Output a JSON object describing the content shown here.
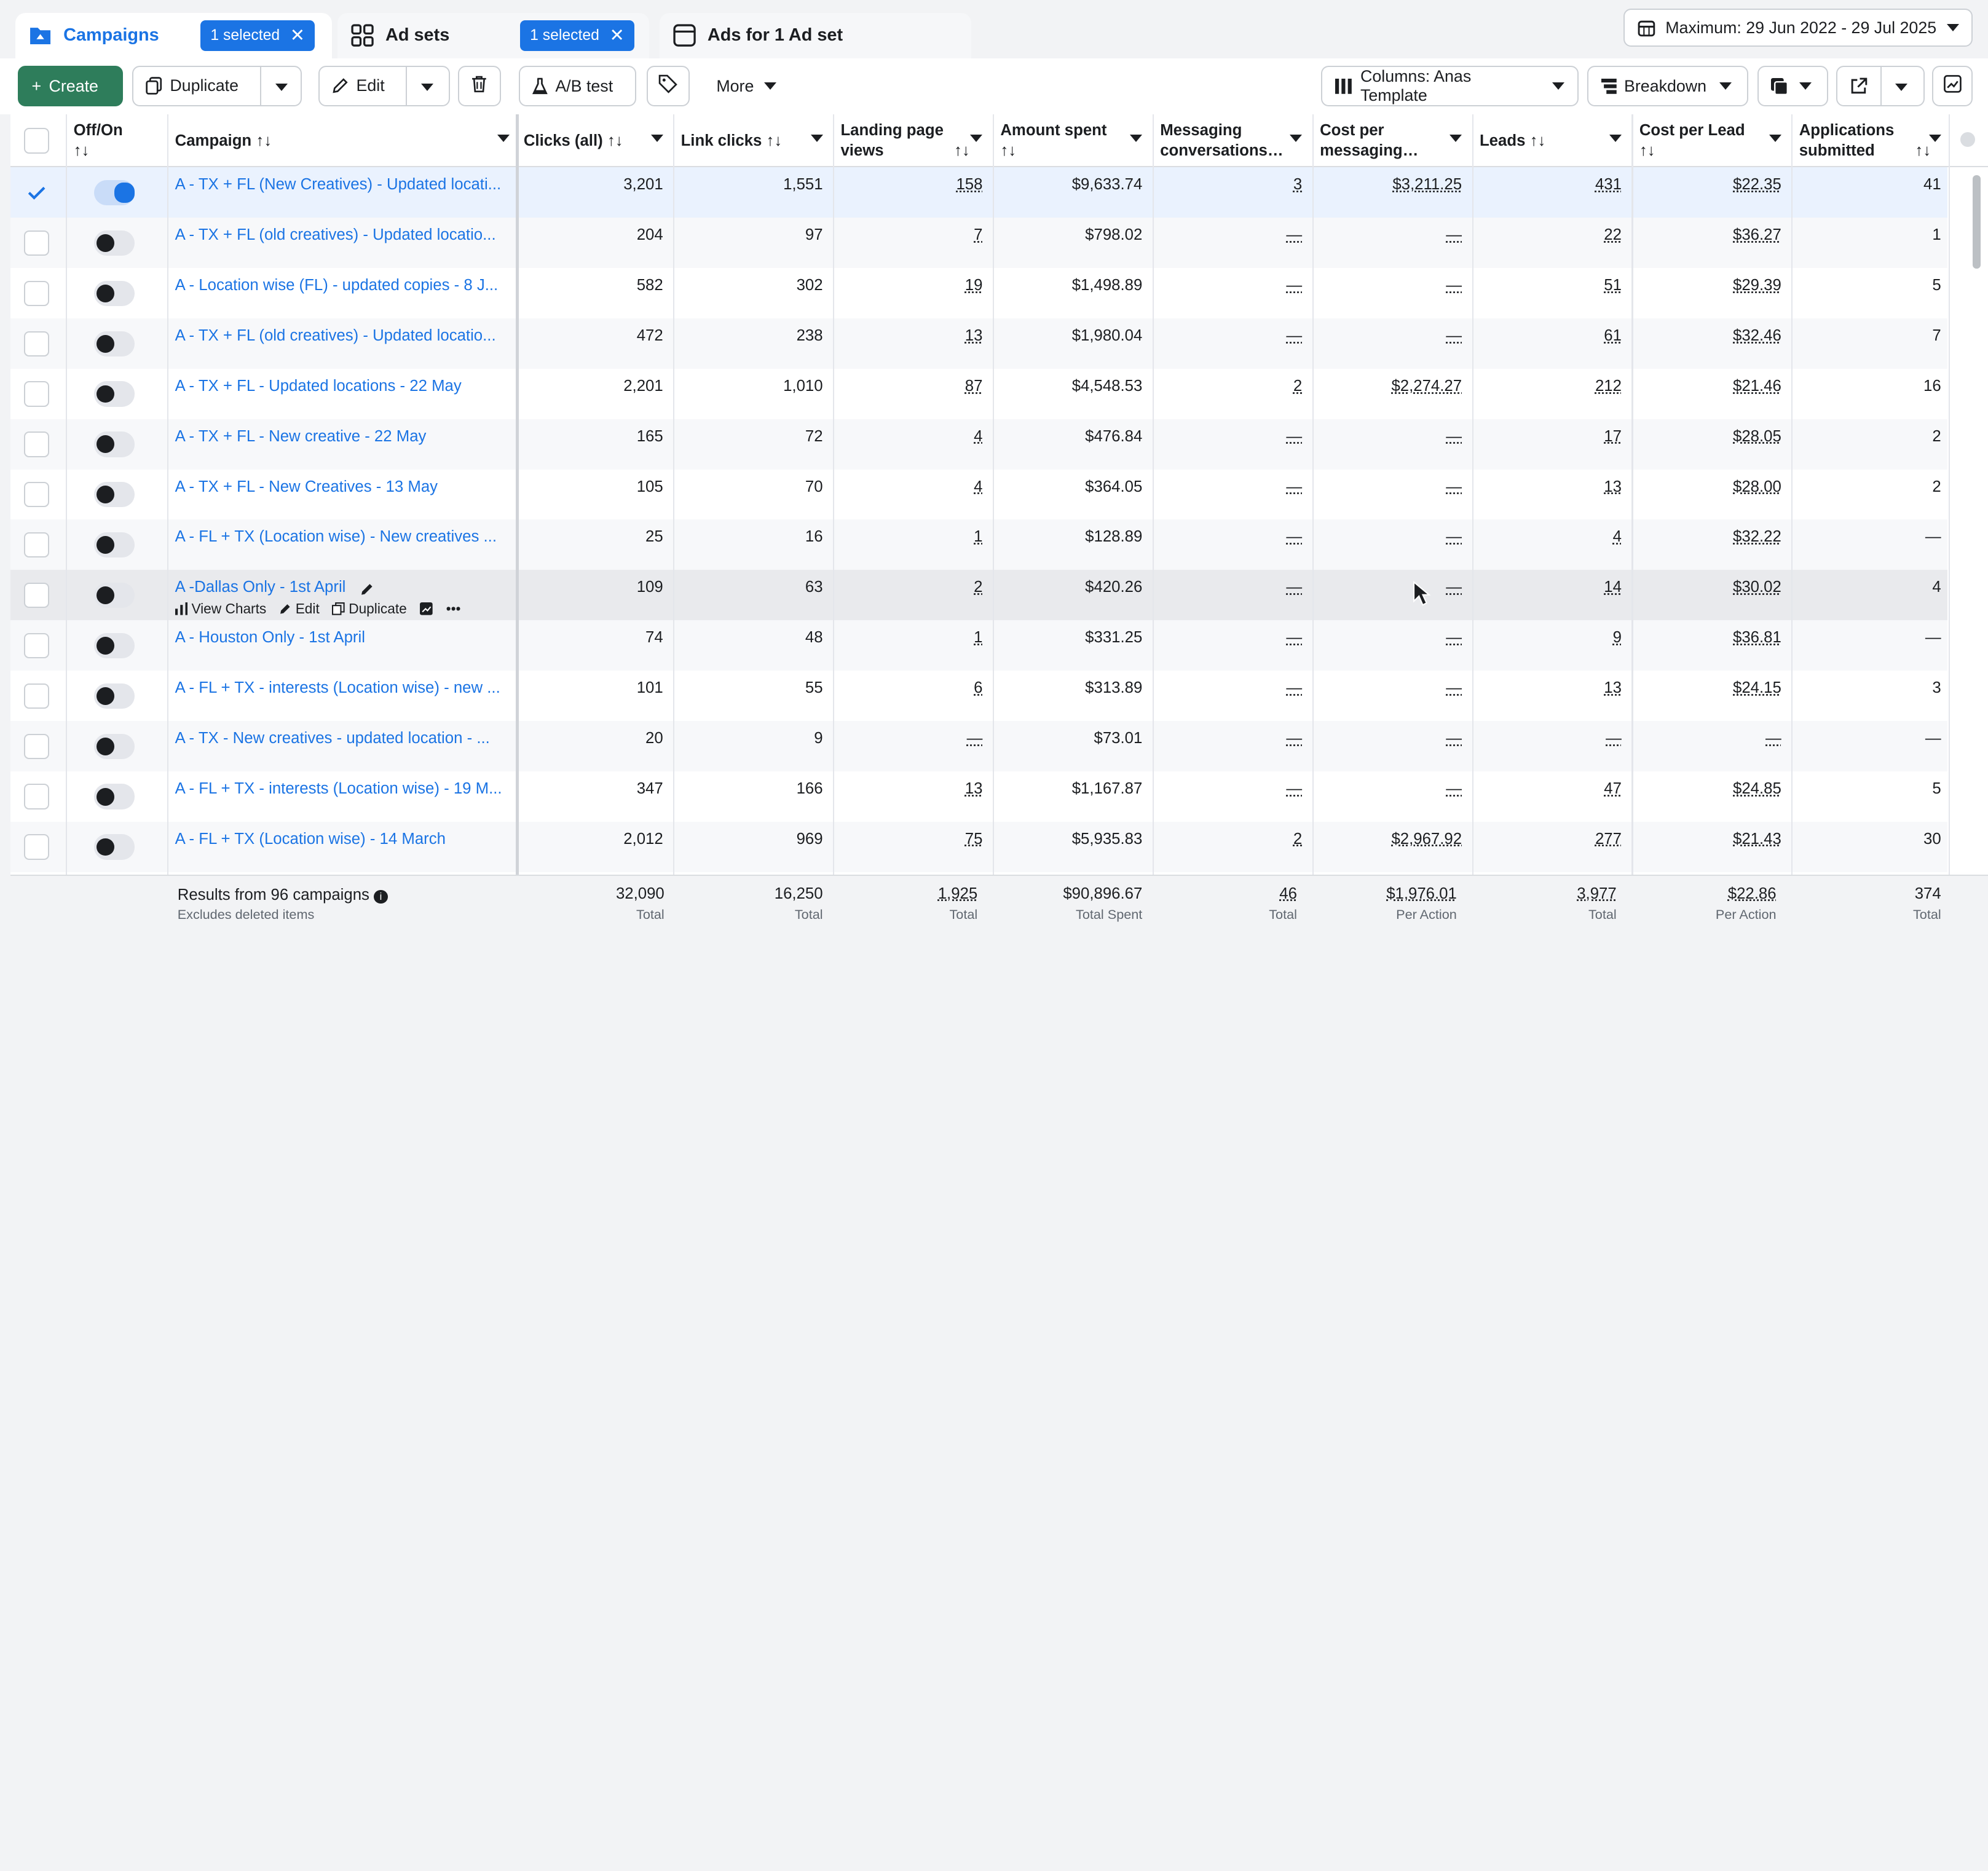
{
  "tabs": [
    {
      "label": "Campaigns",
      "selected_chip": "1 selected"
    },
    {
      "label": "Ad sets",
      "selected_chip": "1 selected"
    },
    {
      "label": "Ads for 1 Ad set"
    }
  ],
  "date_range": "Maximum: 29 Jun 2022 - 29 Jul 2025",
  "toolbar": {
    "create": "Create",
    "duplicate": "Duplicate",
    "edit": "Edit",
    "ab_test": "A/B test",
    "more": "More",
    "columns": "Columns: Anas Template",
    "breakdown": "Breakdown"
  },
  "headers": {
    "offon": "Off/On",
    "campaign": "Campaign",
    "clicks": "Clicks (all)",
    "link_clicks": "Link clicks",
    "landing": "Landing page views",
    "amount": "Amount spent",
    "messaging": "Messaging conversations…",
    "cost_msg": "Cost per messaging…",
    "leads": "Leads",
    "cpl": "Cost per Lead",
    "apps": "Applications submitted"
  },
  "rows": [
    {
      "name": "A - TX + FL (New Creatives) - Updated locati...",
      "clicks": "3,201",
      "link": "1,551",
      "lpv": "158",
      "spent": "$9,633.74",
      "msg": "3",
      "cmsg": "$3,211.25",
      "leads": "431",
      "cpl": "$22.35",
      "apps": "41"
    },
    {
      "name": "A - TX + FL (old creatives) - Updated locatio...",
      "clicks": "204",
      "link": "97",
      "lpv": "7",
      "spent": "$798.02",
      "msg": "—",
      "cmsg": "—",
      "leads": "22",
      "cpl": "$36.27",
      "apps": "1"
    },
    {
      "name": "A - Location wise (FL) - updated copies - 8 J...",
      "clicks": "582",
      "link": "302",
      "lpv": "19",
      "spent": "$1,498.89",
      "msg": "—",
      "cmsg": "—",
      "leads": "51",
      "cpl": "$29.39",
      "apps": "5"
    },
    {
      "name": "A - TX + FL (old creatives) - Updated locatio...",
      "clicks": "472",
      "link": "238",
      "lpv": "13",
      "spent": "$1,980.04",
      "msg": "—",
      "cmsg": "—",
      "leads": "61",
      "cpl": "$32.46",
      "apps": "7"
    },
    {
      "name": "A - TX + FL - Updated locations - 22 May",
      "clicks": "2,201",
      "link": "1,010",
      "lpv": "87",
      "spent": "$4,548.53",
      "msg": "2",
      "cmsg": "$2,274.27",
      "leads": "212",
      "cpl": "$21.46",
      "apps": "16"
    },
    {
      "name": "A - TX + FL - New creative - 22 May",
      "clicks": "165",
      "link": "72",
      "lpv": "4",
      "spent": "$476.84",
      "msg": "—",
      "cmsg": "—",
      "leads": "17",
      "cpl": "$28.05",
      "apps": "2"
    },
    {
      "name": "A - TX + FL - New Creatives - 13 May",
      "clicks": "105",
      "link": "70",
      "lpv": "4",
      "spent": "$364.05",
      "msg": "—",
      "cmsg": "—",
      "leads": "13",
      "cpl": "$28.00",
      "apps": "2"
    },
    {
      "name": "A - FL + TX (Location wise) - New creatives ...",
      "clicks": "25",
      "link": "16",
      "lpv": "1",
      "spent": "$128.89",
      "msg": "—",
      "cmsg": "—",
      "leads": "4",
      "cpl": "$32.22",
      "apps": "—"
    },
    {
      "name": "A -Dallas Only - 1st April",
      "clicks": "109",
      "link": "63",
      "lpv": "2",
      "spent": "$420.26",
      "msg": "—",
      "cmsg": "—",
      "leads": "14",
      "cpl": "$30.02",
      "apps": "4"
    },
    {
      "name": "A - Houston Only - 1st April",
      "clicks": "74",
      "link": "48",
      "lpv": "1",
      "spent": "$331.25",
      "msg": "—",
      "cmsg": "—",
      "leads": "9",
      "cpl": "$36.81",
      "apps": "—"
    },
    {
      "name": "A - FL + TX - interests (Location wise) - new ...",
      "clicks": "101",
      "link": "55",
      "lpv": "6",
      "spent": "$313.89",
      "msg": "—",
      "cmsg": "—",
      "leads": "13",
      "cpl": "$24.15",
      "apps": "3"
    },
    {
      "name": "A - TX - New creatives - updated location - ...",
      "clicks": "20",
      "link": "9",
      "lpv": "—",
      "spent": "$73.01",
      "msg": "—",
      "cmsg": "—",
      "leads": "—",
      "cpl": "—",
      "apps": "—"
    },
    {
      "name": "A - FL + TX - interests (Location wise) - 19 M...",
      "clicks": "347",
      "link": "166",
      "lpv": "13",
      "spent": "$1,167.87",
      "msg": "—",
      "cmsg": "—",
      "leads": "47",
      "cpl": "$24.85",
      "apps": "5"
    },
    {
      "name": "A - FL + TX (Location wise) - 14 March",
      "clicks": "2,012",
      "link": "969",
      "lpv": "75",
      "spent": "$5,935.83",
      "msg": "2",
      "cmsg": "$2,967.92",
      "leads": "277",
      "cpl": "$21.43",
      "apps": "30"
    }
  ],
  "hover_actions": {
    "view_charts": "View Charts",
    "edit": "Edit",
    "duplicate": "Duplicate",
    "more": "•••"
  },
  "footer": {
    "results": "Results from 96 campaigns",
    "excludes": "Excludes deleted items",
    "clicks": "32,090",
    "clicks_sub": "Total",
    "link": "16,250",
    "link_sub": "Total",
    "lpv": "1,925",
    "lpv_sub": "Total",
    "spent": "$90,896.67",
    "spent_sub": "Total Spent",
    "msg": "46",
    "msg_sub": "Total",
    "cmsg": "$1,976.01",
    "cmsg_sub": "Per Action",
    "leads": "3,977",
    "leads_sub": "Total",
    "cpl": "$22.86",
    "cpl_sub": "Per Action",
    "apps": "374",
    "apps_sub": "Total"
  }
}
